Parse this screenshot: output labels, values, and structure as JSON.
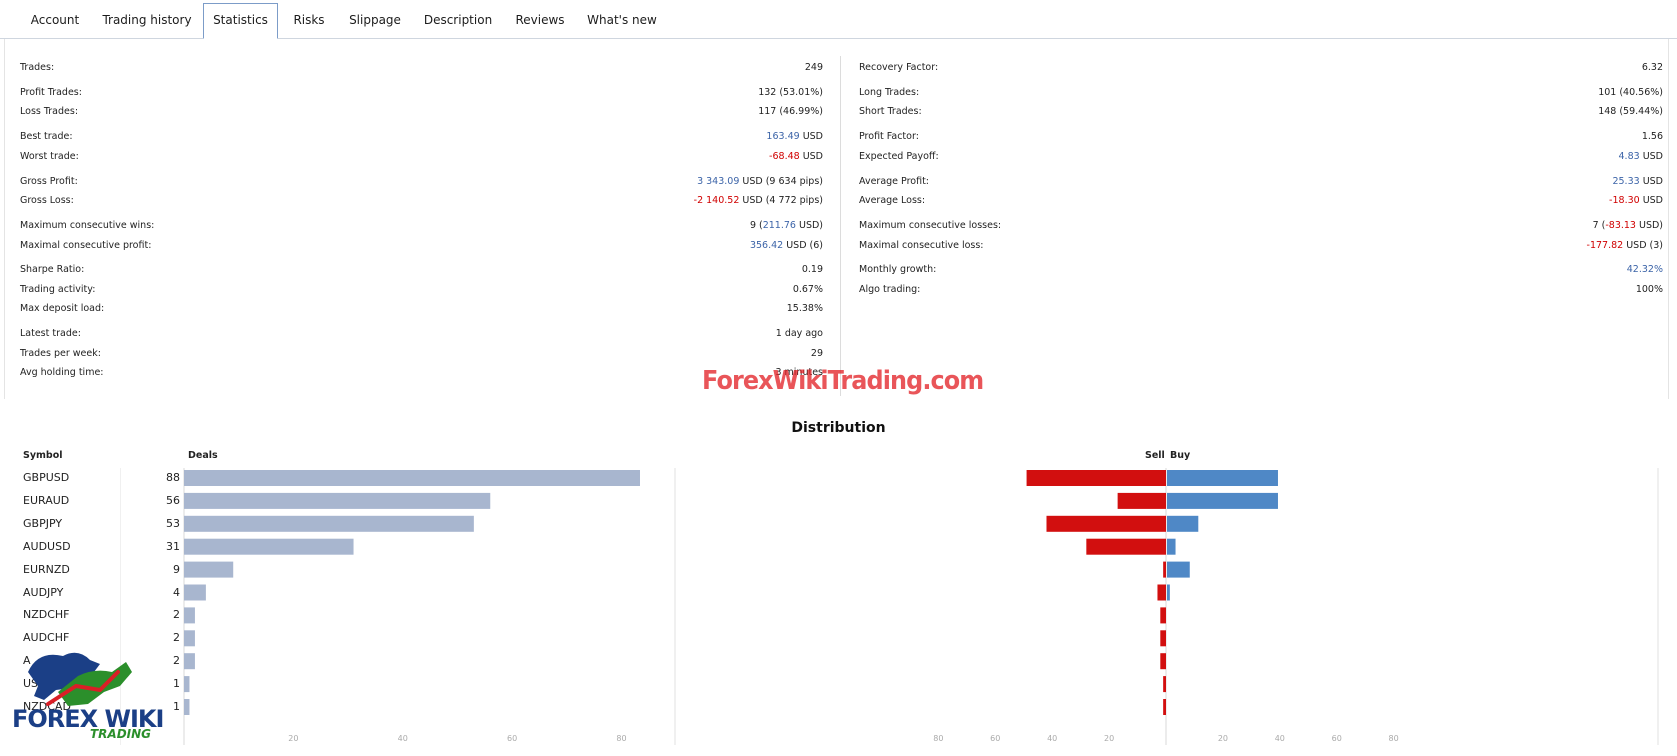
{
  "tabs": [
    {
      "label": "Account",
      "active": false
    },
    {
      "label": "Trading history",
      "active": false
    },
    {
      "label": "Statistics",
      "active": true
    },
    {
      "label": "Risks",
      "active": false
    },
    {
      "label": "Slippage",
      "active": false
    },
    {
      "label": "Description",
      "active": false
    },
    {
      "label": "Reviews",
      "active": false
    },
    {
      "label": "What's new",
      "active": false
    }
  ],
  "stats_left": [
    {
      "label": "Trades:",
      "value": "249"
    },
    {
      "label": "Profit Trades:",
      "value": "132 (53.01%)"
    },
    {
      "label": "Loss Trades:",
      "value": "117 (46.99%)"
    },
    {
      "label": "Best trade:",
      "value": "163.49",
      "unit": " USD",
      "tone": "pos"
    },
    {
      "label": "Worst trade:",
      "value": "-68.48",
      "unit": " USD",
      "tone": "neg"
    },
    {
      "label": "Gross Profit:",
      "value": "3 343.09",
      "unit": " USD (9 634 pips)",
      "tone": "pos"
    },
    {
      "label": "Gross Loss:",
      "value": "-2 140.52",
      "unit": " USD (4 772 pips)",
      "tone": "neg"
    },
    {
      "label": "Maximum consecutive wins:",
      "prefix": "9 (",
      "value": "211.76",
      "unit": " USD)",
      "tone": "pos"
    },
    {
      "label": "Maximal consecutive profit:",
      "value": "356.42",
      "unit": " USD (6)",
      "tone": "pos"
    },
    {
      "label": "Sharpe Ratio:",
      "value": "0.19"
    },
    {
      "label": "Trading activity:",
      "value": "0.67%"
    },
    {
      "label": "Max deposit load:",
      "value": "15.38%"
    },
    {
      "label": "Latest trade:",
      "value": "1 day ago"
    },
    {
      "label": "Trades per week:",
      "value": "29"
    },
    {
      "label": "Avg holding time:",
      "value": "3 minutes"
    }
  ],
  "stats_right": [
    {
      "label": "Recovery Factor:",
      "value": "6.32"
    },
    {
      "label": "Long Trades:",
      "value": "101 (40.56%)"
    },
    {
      "label": "Short Trades:",
      "value": "148 (59.44%)"
    },
    {
      "label": "Profit Factor:",
      "value": "1.56"
    },
    {
      "label": "Expected Payoff:",
      "value": "4.83",
      "unit": " USD",
      "tone": "pos"
    },
    {
      "label": "Average Profit:",
      "value": "25.33",
      "unit": " USD",
      "tone": "pos"
    },
    {
      "label": "Average Loss:",
      "value": "-18.30",
      "unit": " USD",
      "tone": "neg"
    },
    {
      "label": "Maximum consecutive losses:",
      "prefix": "7 (",
      "value": "-83.13",
      "unit": " USD)",
      "tone": "neg"
    },
    {
      "label": "Maximal consecutive loss:",
      "value": "-177.82",
      "unit": " USD (3)",
      "tone": "neg"
    },
    {
      "label": "Monthly growth:",
      "value": "42.32%",
      "tone": "pos"
    },
    {
      "label": "Algo trading:",
      "value": "100%"
    }
  ],
  "watermark": "ForexWikiTrading.com",
  "distribution": {
    "title": "Distribution",
    "symbol_header": "Symbol",
    "deals_header": "Deals",
    "sell_header": "Sell",
    "buy_header": "Buy"
  },
  "chart_data": {
    "type": "bar",
    "categories": [
      "GBPUSD",
      "EURAUD",
      "GBPJPY",
      "AUDUSD",
      "EURNZD",
      "AUDJPY",
      "NZDCHF",
      "AUDCHF",
      "A",
      "USDJP",
      "NZDCAD"
    ],
    "deals": [
      88,
      56,
      53,
      31,
      9,
      4,
      2,
      2,
      2,
      1,
      1
    ],
    "sell": [
      49,
      17,
      42,
      28,
      1,
      3,
      2,
      2,
      2,
      1,
      1
    ],
    "buy": [
      39,
      39,
      11,
      3,
      8,
      1,
      0,
      0,
      0,
      0,
      0
    ],
    "deals_ticks": [
      "20",
      "40",
      "60",
      "80"
    ],
    "sell_ticks": [
      "80",
      "60",
      "40",
      "20"
    ],
    "buy_ticks": [
      "20",
      "40",
      "60",
      "80"
    ],
    "xlim": [
      0,
      90
    ],
    "colors": {
      "deals": "#a8b6cf",
      "sell": "#d20f0f",
      "buy": "#4f88c6"
    }
  },
  "logo": {
    "main": "FOREX WIKI",
    "sub": "TRADING"
  }
}
